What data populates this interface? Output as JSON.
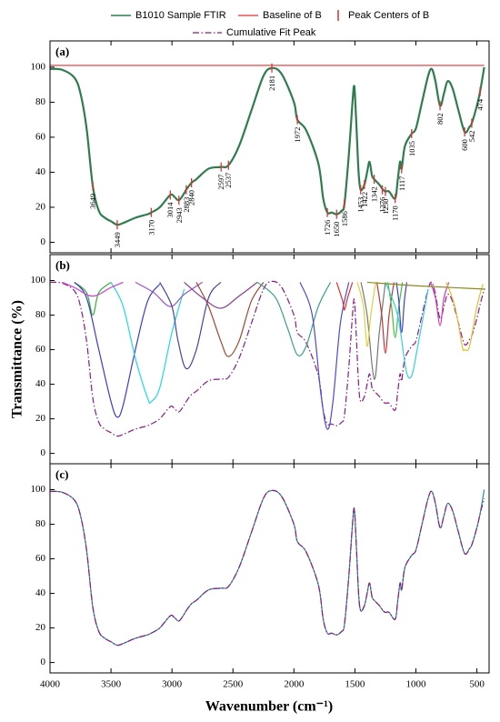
{
  "xlim": [
    4000,
    400
  ],
  "xticks": [
    4000,
    3500,
    3000,
    2500,
    2000,
    1500,
    1000,
    500
  ],
  "xlabel": "Wavenumber (cm⁻¹)",
  "ylabel": "Transmittance (%)",
  "chart_data": [
    {
      "type": "line",
      "label": "(a)",
      "ylim": [
        -6,
        115
      ],
      "yticks": [
        0,
        20,
        40,
        60,
        80,
        100
      ],
      "x": [
        4000,
        3900,
        3800,
        3750,
        3700,
        3649,
        3600,
        3550,
        3500,
        3449,
        3400,
        3300,
        3200,
        3170,
        3100,
        3014,
        2980,
        2943,
        2900,
        2883,
        2840,
        2800,
        2700,
        2597,
        2537,
        2450,
        2350,
        2250,
        2181,
        2100,
        2000,
        1972,
        1900,
        1800,
        1760,
        1726,
        1690,
        1650,
        1610,
        1586,
        1550,
        1520,
        1505,
        1490,
        1470,
        1453,
        1422,
        1400,
        1380,
        1360,
        1342,
        1300,
        1270,
        1250,
        1220,
        1170,
        1150,
        1130,
        1117,
        1090,
        1035,
        1000,
        950,
        900,
        870,
        840,
        802,
        770,
        740,
        700,
        650,
        600,
        560,
        542,
        500,
        474,
        440
      ],
      "series": [
        {
          "name": "B1010 Sample FTIR",
          "color": "#2f7d4f",
          "values": [
            99,
            98.5,
            94,
            85,
            65,
            32,
            18,
            14,
            12,
            10,
            11,
            14,
            16,
            17,
            20,
            27,
            26,
            24,
            28,
            30,
            34,
            36,
            42,
            43,
            44,
            55,
            75,
            95,
            99.5,
            96,
            80,
            70,
            64,
            45,
            25,
            17,
            17,
            16,
            18,
            22,
            50,
            80,
            89,
            70,
            40,
            30,
            33,
            40,
            46,
            38,
            36,
            33,
            30,
            29,
            29,
            25,
            35,
            46,
            42,
            55,
            62,
            65,
            80,
            95,
            99,
            92,
            78,
            85,
            92,
            88,
            75,
            63,
            66,
            68,
            78,
            86,
            100
          ]
        },
        {
          "name": "Baseline of B",
          "color": "#e03030",
          "x": [
            4000,
            440
          ],
          "values": [
            101,
            101
          ]
        }
      ],
      "peaks": {
        "name": "Peak Centers of B",
        "color": "#e03030",
        "x": [
          3649,
          3449,
          3170,
          3014,
          2943,
          2883,
          2840,
          2597,
          2537,
          2181,
          1972,
          1726,
          1650,
          1586,
          1453,
          1422,
          1342,
          1276,
          1250,
          1170,
          1117,
          1035,
          802,
          600,
          542,
          474
        ],
        "values": [
          32,
          10,
          17,
          27,
          24,
          30,
          34,
          43,
          44,
          99.5,
          70,
          17,
          16,
          22,
          30,
          33,
          36,
          30,
          29,
          25,
          42,
          62,
          78,
          63,
          68,
          86
        ]
      }
    },
    {
      "type": "line",
      "label": "(b)",
      "ylim": [
        -6,
        115
      ],
      "yticks": [
        0,
        20,
        40,
        60,
        80,
        100
      ],
      "x": [
        4000,
        3900,
        3800,
        3750,
        3700,
        3649,
        3600,
        3550,
        3500,
        3449,
        3400,
        3300,
        3200,
        3170,
        3100,
        3014,
        2980,
        2943,
        2900,
        2883,
        2840,
        2800,
        2700,
        2597,
        2537,
        2450,
        2350,
        2250,
        2181,
        2100,
        2000,
        1972,
        1900,
        1800,
        1760,
        1726,
        1690,
        1650,
        1610,
        1586,
        1550,
        1520,
        1505,
        1490,
        1470,
        1453,
        1422,
        1400,
        1380,
        1360,
        1342,
        1300,
        1270,
        1250,
        1220,
        1170,
        1150,
        1130,
        1117,
        1090,
        1035,
        1000,
        950,
        900,
        870,
        840,
        802,
        770,
        740,
        700,
        650,
        600,
        560,
        542,
        500,
        474,
        440
      ],
      "series": [
        {
          "name": "Cumulative Fit Peak",
          "color": "#8b1a8b",
          "dash": "dashdot",
          "values": [
            99,
            98.5,
            94,
            85,
            65,
            32,
            18,
            14,
            12,
            10,
            11,
            14,
            16,
            17,
            20,
            27,
            26,
            24,
            28,
            30,
            34,
            36,
            42,
            43,
            44,
            55,
            75,
            95,
            99.5,
            96,
            80,
            70,
            64,
            45,
            25,
            17,
            17,
            16,
            18,
            22,
            50,
            80,
            89,
            70,
            40,
            30,
            33,
            40,
            46,
            38,
            36,
            33,
            30,
            29,
            29,
            25,
            35,
            46,
            42,
            55,
            62,
            65,
            80,
            95,
            99,
            92,
            78,
            85,
            92,
            88,
            75,
            63,
            66,
            68,
            78,
            86,
            95
          ]
        },
        {
          "color": "#33b233",
          "x": [
            3800,
            3700,
            3649,
            3600,
            3500
          ],
          "values": [
            99,
            93,
            80,
            93,
            99
          ]
        },
        {
          "color": "#3b3bd1",
          "x": [
            3800,
            3700,
            3600,
            3500,
            3449,
            3400,
            3300,
            3200,
            3100
          ],
          "values": [
            99,
            90,
            60,
            30,
            21,
            28,
            60,
            88,
            98
          ]
        },
        {
          "color": "#22d8e0",
          "x": [
            3500,
            3400,
            3300,
            3200,
            3170,
            3100,
            3000,
            2900
          ],
          "values": [
            99,
            85,
            55,
            32,
            30,
            38,
            70,
            95
          ]
        },
        {
          "color": "#cc3fcc",
          "x": [
            3900,
            3800,
            3650,
            3500,
            3400
          ],
          "values": [
            99,
            96,
            91,
            96,
            99
          ]
        },
        {
          "color": "#9b4fc9",
          "x": [
            3300,
            3150,
            3014,
            2900,
            2750
          ],
          "values": [
            99,
            93,
            85,
            92,
            99
          ]
        },
        {
          "color": "#4444aa",
          "x": [
            3100,
            3000,
            2950,
            2883,
            2800,
            2700,
            2600
          ],
          "values": [
            99,
            85,
            65,
            49,
            60,
            90,
            99
          ]
        },
        {
          "color": "#a0462e",
          "x": [
            2800,
            2700,
            2600,
            2537,
            2450,
            2350,
            2250
          ],
          "values": [
            99,
            85,
            65,
            56,
            65,
            88,
            99
          ]
        },
        {
          "color": "#8a3a9a",
          "x": [
            2900,
            2750,
            2600,
            2450,
            2300
          ],
          "values": [
            99,
            90,
            84,
            91,
            99
          ]
        },
        {
          "color": "#3aa08a",
          "x": [
            2300,
            2150,
            2050,
            1972,
            1900,
            1800,
            1700
          ],
          "values": [
            99,
            90,
            72,
            57,
            62,
            85,
            99
          ]
        },
        {
          "color": "#4b4bd8",
          "x": [
            1950,
            1850,
            1780,
            1726,
            1680,
            1620,
            1550
          ],
          "values": [
            99,
            80,
            35,
            14,
            30,
            75,
            99
          ]
        },
        {
          "color": "#e03030",
          "x": [
            1650,
            1600,
            1586,
            1560,
            1520
          ],
          "values": [
            99,
            88,
            83,
            90,
            99
          ]
        },
        {
          "color": "#777777",
          "x": [
            1450,
            1400,
            1342,
            1300,
            1250
          ],
          "values": [
            99,
            80,
            43,
            70,
            99
          ]
        },
        {
          "color": "#e0d040",
          "x": [
            1480,
            1430,
            1400,
            1370,
            1330
          ],
          "values": [
            99,
            85,
            62,
            80,
            99
          ]
        },
        {
          "color": "#d03030",
          "x": [
            1320,
            1280,
            1250,
            1220,
            1180
          ],
          "values": [
            99,
            80,
            58,
            80,
            99
          ]
        },
        {
          "color": "#40c040",
          "x": [
            1230,
            1200,
            1170,
            1140,
            1110
          ],
          "values": [
            99,
            85,
            67,
            85,
            99
          ]
        },
        {
          "color": "#30d0e0",
          "x": [
            1250,
            1150,
            1080,
            1035,
            990,
            900
          ],
          "values": [
            99,
            80,
            48,
            45,
            60,
            95
          ]
        },
        {
          "color": "#4040c0",
          "x": [
            1160,
            1140,
            1117,
            1095,
            1075
          ],
          "values": [
            99,
            88,
            70,
            88,
            99
          ]
        },
        {
          "color": "#d040b0",
          "x": [
            880,
            840,
            802,
            770,
            730
          ],
          "values": [
            99,
            90,
            74,
            90,
            99
          ]
        },
        {
          "color": "#e0c030",
          "x": [
            750,
            680,
            620,
            600,
            560,
            500,
            450
          ],
          "values": [
            99,
            85,
            62,
            60,
            62,
            85,
            98
          ]
        },
        {
          "color": "#8a8a20",
          "x": [
            1400,
            1000,
            430
          ],
          "values": [
            99,
            97,
            95
          ]
        }
      ]
    },
    {
      "type": "line",
      "label": "(c)",
      "ylim": [
        -6,
        115
      ],
      "yticks": [
        0,
        20,
        40,
        60,
        80,
        100
      ],
      "x": [
        4000,
        3900,
        3800,
        3750,
        3700,
        3649,
        3600,
        3550,
        3500,
        3449,
        3400,
        3300,
        3200,
        3170,
        3100,
        3014,
        2980,
        2943,
        2900,
        2883,
        2840,
        2800,
        2700,
        2597,
        2537,
        2450,
        2350,
        2250,
        2181,
        2100,
        2000,
        1972,
        1900,
        1800,
        1760,
        1726,
        1690,
        1650,
        1610,
        1586,
        1550,
        1520,
        1505,
        1490,
        1470,
        1453,
        1422,
        1400,
        1380,
        1360,
        1342,
        1300,
        1270,
        1250,
        1220,
        1170,
        1150,
        1130,
        1117,
        1090,
        1035,
        1000,
        950,
        900,
        870,
        840,
        802,
        770,
        740,
        700,
        650,
        600,
        560,
        542,
        500,
        474,
        440
      ],
      "series": [
        {
          "color": "#2c8f8f",
          "values": [
            99,
            98.5,
            94,
            85,
            65,
            32,
            18,
            14,
            12,
            10,
            11,
            14,
            16,
            17,
            20,
            27,
            26,
            24,
            28,
            30,
            34,
            36,
            42,
            43,
            44,
            55,
            75,
            95,
            99.5,
            96,
            80,
            70,
            64,
            45,
            25,
            17,
            17,
            16,
            18,
            22,
            50,
            80,
            89,
            70,
            40,
            30,
            33,
            40,
            46,
            38,
            36,
            33,
            30,
            29,
            29,
            25,
            35,
            46,
            42,
            55,
            62,
            65,
            80,
            95,
            99,
            92,
            78,
            85,
            92,
            88,
            75,
            63,
            66,
            68,
            78,
            86,
            100
          ]
        },
        {
          "color": "#8b1a8b",
          "dash": "dashdot",
          "values": [
            99,
            98.5,
            94,
            85,
            65,
            32,
            18,
            14,
            12,
            10,
            11,
            14,
            16,
            17,
            20,
            27,
            26,
            24,
            28,
            30,
            34,
            36,
            42,
            43,
            44,
            55,
            75,
            95,
            99.5,
            96,
            80,
            70,
            64,
            45,
            25,
            17,
            17,
            16,
            18,
            22,
            50,
            80,
            89,
            70,
            40,
            30,
            33,
            40,
            46,
            38,
            36,
            33,
            30,
            29,
            29,
            25,
            35,
            46,
            42,
            55,
            62,
            65,
            80,
            95,
            99,
            92,
            78,
            85,
            92,
            88,
            75,
            63,
            66,
            68,
            78,
            86,
            95
          ]
        }
      ]
    }
  ]
}
